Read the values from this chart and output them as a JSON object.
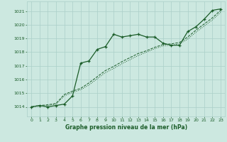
{
  "title": "Graphe pression niveau de la mer (hPa)",
  "ylim": [
    1013.3,
    1021.7
  ],
  "xlim": [
    -0.5,
    23.5
  ],
  "yticks": [
    1014,
    1015,
    1016,
    1017,
    1018,
    1019,
    1020,
    1021
  ],
  "xticks": [
    0,
    1,
    2,
    3,
    4,
    5,
    6,
    7,
    8,
    9,
    10,
    11,
    12,
    13,
    14,
    15,
    16,
    17,
    18,
    19,
    20,
    21,
    22,
    23
  ],
  "bg_color": "#cce8e0",
  "grid_color": "#aacfc8",
  "line_color": "#1a5c28",
  "line1_y": [
    1014.0,
    1014.1,
    1014.0,
    1014.1,
    1014.2,
    1014.8,
    1017.2,
    1017.35,
    1018.2,
    1018.4,
    1019.3,
    1019.1,
    1019.2,
    1019.3,
    1019.1,
    1019.1,
    1018.65,
    1018.5,
    1018.5,
    1019.5,
    1019.85,
    1020.4,
    1021.05,
    1021.15
  ],
  "line2_y": [
    1014.0,
    1014.1,
    1014.15,
    1014.25,
    1014.9,
    1015.15,
    1015.35,
    1015.75,
    1016.2,
    1016.65,
    1016.95,
    1017.3,
    1017.6,
    1017.9,
    1018.1,
    1018.35,
    1018.55,
    1018.6,
    1018.7,
    1019.1,
    1019.6,
    1020.05,
    1020.5,
    1021.05
  ],
  "line3_y": [
    1014.0,
    1014.05,
    1014.1,
    1014.2,
    1014.8,
    1015.05,
    1015.25,
    1015.6,
    1016.05,
    1016.5,
    1016.8,
    1017.15,
    1017.45,
    1017.75,
    1018.0,
    1018.25,
    1018.45,
    1018.5,
    1018.6,
    1018.95,
    1019.45,
    1019.9,
    1020.35,
    1020.9
  ]
}
